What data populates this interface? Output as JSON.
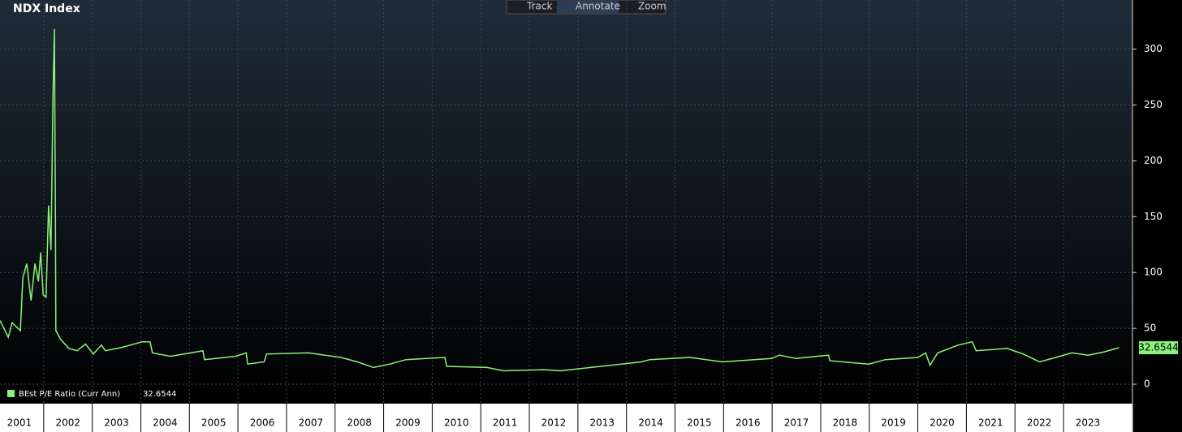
{
  "chart_data": {
    "type": "line",
    "title": "NDX Index",
    "toolbar": [
      "Track",
      "Annotate",
      "Zoom"
    ],
    "x": [
      2001.1,
      2001.18,
      2001.27,
      2001.35,
      2001.52,
      2001.57,
      2001.65,
      2001.74,
      2001.82,
      2001.89,
      2001.94,
      2001.99,
      2002.05,
      2002.1,
      2002.15,
      2002.19,
      2002.22,
      2002.24,
      2002.25,
      2002.35,
      2002.52,
      2002.69,
      2002.86,
      2003.02,
      2003.19,
      2003.27,
      2003.61,
      2004.03,
      2004.19,
      2004.24,
      2004.61,
      2005.28,
      2005.31,
      2005.95,
      2006.17,
      2006.2,
      2006.54,
      2006.59,
      2007.45,
      2008.12,
      2008.46,
      2008.79,
      2009.13,
      2009.46,
      2010.26,
      2010.3,
      2011.13,
      2011.47,
      2012.3,
      2012.64,
      2013.47,
      2014.31,
      2014.48,
      2015.31,
      2015.98,
      2016.99,
      2017.15,
      2017.49,
      2018.16,
      2018.19,
      2018.99,
      2019.33,
      2020.0,
      2020.16,
      2020.25,
      2020.41,
      2020.83,
      2021.12,
      2021.2,
      2021.84,
      2022.17,
      2022.51,
      2022.84,
      2023.17,
      2023.51,
      2023.84,
      2024.14
    ],
    "series": [
      {
        "name": "BEst P/E Ratio (Curr Ann)",
        "color": "#8cf27a",
        "values": [
          57,
          50,
          42,
          55,
          48,
          95,
          108,
          75,
          108,
          92,
          118,
          80,
          78,
          160,
          120,
          255,
          318,
          165,
          48,
          40,
          32,
          30,
          36,
          27,
          35,
          30,
          33,
          38,
          38,
          28,
          25,
          30,
          22,
          25,
          28,
          18,
          20,
          27,
          28,
          24,
          20,
          15,
          18,
          22,
          24,
          16,
          15,
          12,
          13,
          12,
          16,
          20,
          22,
          24,
          20,
          23,
          26,
          23,
          26,
          21,
          18,
          22,
          24,
          28,
          17,
          28,
          35,
          38,
          30,
          32,
          27,
          20,
          24,
          28,
          26,
          29,
          32.6544
        ]
      }
    ],
    "xlim": [
      2001.1,
      2024.42
    ],
    "ylim": [
      -17.4,
      344
    ],
    "xticks": [
      2001,
      2002,
      2003,
      2004,
      2005,
      2006,
      2007,
      2008,
      2009,
      2010,
      2011,
      2012,
      2013,
      2014,
      2015,
      2016,
      2017,
      2018,
      2019,
      2020,
      2021,
      2022,
      2023
    ],
    "yticks": [
      0,
      50,
      100,
      150,
      200,
      250,
      300
    ],
    "grid": true
  }
}
